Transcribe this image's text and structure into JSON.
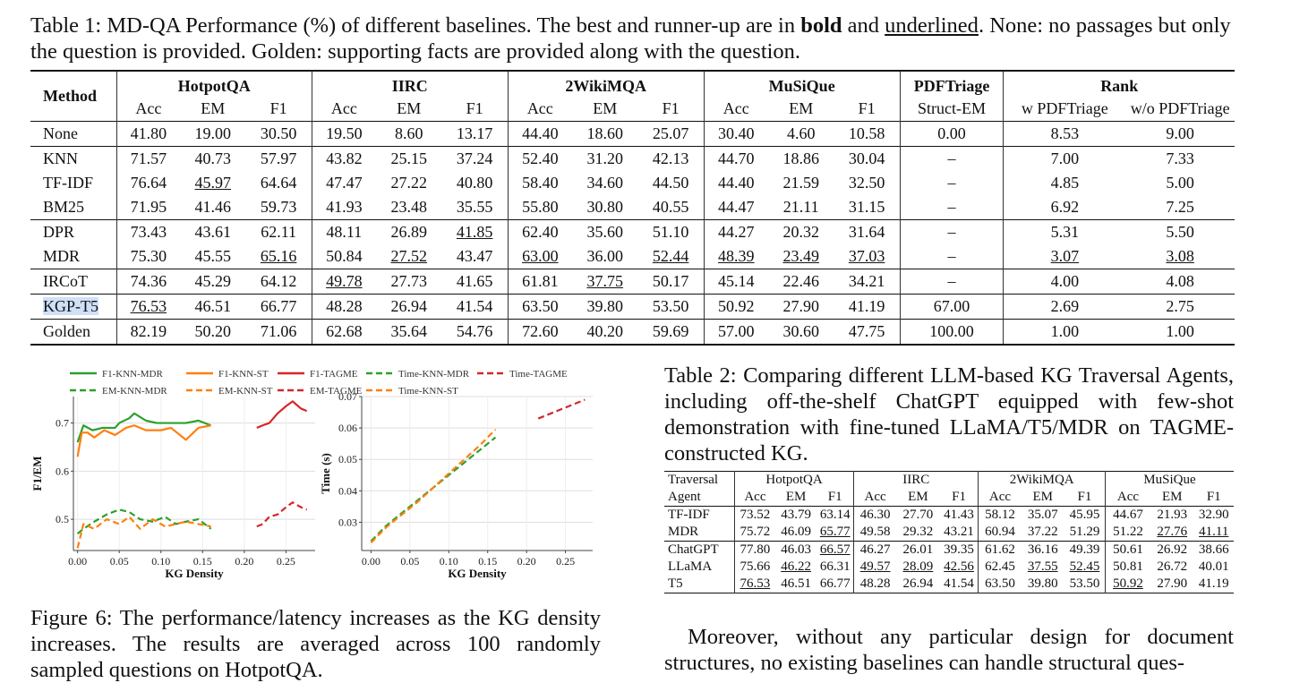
{
  "table1": {
    "caption_prefix": "Table 1: MD-QA Performance (%) of different baselines. The best and runner-up are in ",
    "caption_bold": "bold",
    "caption_and": " and ",
    "caption_underlined": "underlined",
    "caption_suffix": ". None: no passages but only the question is provided. Golden: supporting facts are provided along with the question.",
    "method_header": "Method",
    "groups": [
      "HotpotQA",
      "IIRC",
      "2WikiMQA",
      "MuSiQue",
      "PDFTriage",
      "Rank"
    ],
    "subheaders": [
      "Acc",
      "EM",
      "F1",
      "Acc",
      "EM",
      "F1",
      "Acc",
      "EM",
      "F1",
      "Acc",
      "EM",
      "F1",
      "Struct-EM",
      "w PDFTriage",
      "w/o PDFTriage"
    ],
    "rows": [
      {
        "method": "None",
        "values": [
          "41.80",
          "19.00",
          "30.50",
          "19.50",
          "8.60",
          "13.17",
          "44.40",
          "18.60",
          "25.07",
          "30.40",
          "4.60",
          "10.58",
          "0.00",
          "8.53",
          "9.00"
        ]
      },
      {
        "method": "KNN",
        "values": [
          "71.57",
          "40.73",
          "57.97",
          "43.82",
          "25.15",
          "37.24",
          "52.40",
          "31.20",
          "42.13",
          "44.70",
          "18.86",
          "30.04",
          "–",
          "7.00",
          "7.33"
        ]
      },
      {
        "method": "TF-IDF",
        "values": [
          "76.64",
          "45.97",
          "64.64",
          "47.47",
          "27.22",
          "40.80",
          "58.40",
          "34.60",
          "44.50",
          "44.40",
          "21.59",
          "32.50",
          "–",
          "4.85",
          "5.00"
        ]
      },
      {
        "method": "BM25",
        "values": [
          "71.95",
          "41.46",
          "59.73",
          "41.93",
          "23.48",
          "35.55",
          "55.80",
          "30.80",
          "40.55",
          "44.47",
          "21.11",
          "31.15",
          "–",
          "6.92",
          "7.25"
        ]
      },
      {
        "method": "DPR",
        "values": [
          "73.43",
          "43.61",
          "62.11",
          "48.11",
          "26.89",
          "41.85",
          "62.40",
          "35.60",
          "51.10",
          "44.27",
          "20.32",
          "31.64",
          "–",
          "5.31",
          "5.50"
        ]
      },
      {
        "method": "MDR",
        "values": [
          "75.30",
          "45.55",
          "65.16",
          "50.84",
          "27.52",
          "43.47",
          "63.00",
          "36.00",
          "52.44",
          "48.39",
          "23.49",
          "37.03",
          "–",
          "3.07",
          "3.08"
        ]
      },
      {
        "method": "IRCoT",
        "values": [
          "74.36",
          "45.29",
          "64.12",
          "49.78",
          "27.73",
          "41.65",
          "61.81",
          "37.75",
          "50.17",
          "45.14",
          "22.46",
          "34.21",
          "–",
          "4.00",
          "4.08"
        ]
      },
      {
        "method": "KGP-T5",
        "values": [
          "76.53",
          "46.51",
          "66.77",
          "48.28",
          "26.94",
          "41.54",
          "63.50",
          "39.80",
          "53.50",
          "50.92",
          "27.90",
          "41.19",
          "67.00",
          "2.69",
          "2.75"
        ]
      },
      {
        "method": "Golden",
        "values": [
          "82.19",
          "50.20",
          "71.06",
          "62.68",
          "35.64",
          "54.76",
          "72.60",
          "40.20",
          "59.69",
          "57.00",
          "30.60",
          "47.75",
          "100.00",
          "1.00",
          "1.00"
        ]
      }
    ]
  },
  "figure6": {
    "caption": "Figure 6: The performance/latency increases as the KG density increases. The results are averaged across 100 randomly sampled questions on HotpotQA.",
    "legend": [
      "F1-KNN-MDR",
      "F1-KNN-ST",
      "F1-TAGME",
      "Time-KNN-MDR",
      "Time-TAGME",
      "EM-KNN-MDR",
      "EM-KNN-ST",
      "EM-TAGME",
      "Time-KNN-ST"
    ],
    "colors": {
      "green": "#2ca02c",
      "orange": "#ff7f0e",
      "red": "#d62728"
    }
  },
  "chart_data": [
    {
      "type": "line",
      "title": "",
      "xlabel": "KG Density",
      "ylabel": "F1/EM",
      "xlim": [
        -0.005,
        0.285
      ],
      "ylim": [
        0.435,
        0.755
      ],
      "xticks": [
        "0.00",
        "0.05",
        "0.10",
        "0.15",
        "0.20",
        "0.25"
      ],
      "xtick_values": [
        0,
        0.05,
        0.1,
        0.15,
        0.2,
        0.25
      ],
      "yticks": [
        "0.5",
        "0.6",
        "0.7"
      ],
      "ytick_values": [
        0.5,
        0.6,
        0.7
      ],
      "series": [
        {
          "name": "F1-KNN-MDR",
          "color": "green",
          "dash": false,
          "x": [
            0,
            0.007,
            0.018,
            0.03,
            0.045,
            0.05,
            0.062,
            0.068,
            0.082,
            0.095,
            0.11,
            0.13,
            0.145,
            0.16
          ],
          "y": [
            0.66,
            0.695,
            0.685,
            0.69,
            0.69,
            0.7,
            0.71,
            0.72,
            0.705,
            0.7,
            0.7,
            0.7,
            0.705,
            0.695
          ]
        },
        {
          "name": "F1-KNN-ST",
          "color": "orange",
          "dash": false,
          "x": [
            0,
            0.005,
            0.012,
            0.02,
            0.032,
            0.045,
            0.058,
            0.068,
            0.082,
            0.1,
            0.112,
            0.13,
            0.145,
            0.16
          ],
          "y": [
            0.63,
            0.68,
            0.68,
            0.67,
            0.685,
            0.675,
            0.69,
            0.695,
            0.685,
            0.685,
            0.69,
            0.665,
            0.69,
            0.695
          ]
        },
        {
          "name": "F1-TAGME",
          "color": "red",
          "dash": false,
          "x": [
            0.215,
            0.222,
            0.23,
            0.24,
            0.25,
            0.258,
            0.268,
            0.275
          ],
          "y": [
            0.69,
            0.695,
            0.7,
            0.72,
            0.735,
            0.745,
            0.73,
            0.725
          ]
        },
        {
          "name": "EM-KNN-MDR",
          "color": "green",
          "dash": true,
          "x": [
            0,
            0.007,
            0.02,
            0.035,
            0.05,
            0.062,
            0.075,
            0.09,
            0.105,
            0.118,
            0.13,
            0.145,
            0.16
          ],
          "y": [
            0.47,
            0.48,
            0.495,
            0.51,
            0.52,
            0.515,
            0.5,
            0.495,
            0.505,
            0.49,
            0.495,
            0.5,
            0.48
          ]
        },
        {
          "name": "EM-KNN-ST",
          "color": "orange",
          "dash": true,
          "x": [
            0,
            0.007,
            0.02,
            0.035,
            0.05,
            0.062,
            0.075,
            0.09,
            0.105,
            0.118,
            0.13,
            0.145,
            0.16
          ],
          "y": [
            0.44,
            0.49,
            0.48,
            0.5,
            0.49,
            0.505,
            0.48,
            0.5,
            0.485,
            0.49,
            0.495,
            0.49,
            0.485
          ]
        },
        {
          "name": "EM-TAGME",
          "color": "red",
          "dash": true,
          "x": [
            0.215,
            0.222,
            0.23,
            0.24,
            0.25,
            0.258,
            0.268,
            0.275
          ],
          "y": [
            0.485,
            0.49,
            0.505,
            0.51,
            0.525,
            0.535,
            0.525,
            0.52
          ]
        }
      ]
    },
    {
      "type": "line",
      "title": "",
      "xlabel": "KG Density",
      "ylabel": "Time (s)",
      "xlim": [
        -0.012,
        0.285
      ],
      "ylim": [
        0.021,
        0.07
      ],
      "xticks": [
        "0.00",
        "0.05",
        "0.10",
        "0.15",
        "0.20",
        "0.25"
      ],
      "xtick_values": [
        0,
        0.05,
        0.1,
        0.15,
        0.2,
        0.25
      ],
      "yticks": [
        "0.03",
        "0.04",
        "0.05",
        "0.06",
        "0.07"
      ],
      "ytick_values": [
        0.03,
        0.04,
        0.05,
        0.06,
        0.07
      ],
      "series": [
        {
          "name": "Time-KNN-MDR",
          "color": "green",
          "dash": true,
          "x": [
            0,
            0.02,
            0.04,
            0.06,
            0.08,
            0.1,
            0.12,
            0.14,
            0.16
          ],
          "y": [
            0.024,
            0.029,
            0.033,
            0.037,
            0.041,
            0.045,
            0.049,
            0.053,
            0.057
          ]
        },
        {
          "name": "Time-KNN-ST",
          "color": "orange",
          "dash": true,
          "x": [
            0,
            0.02,
            0.04,
            0.06,
            0.08,
            0.1,
            0.12,
            0.14,
            0.16
          ],
          "y": [
            0.0235,
            0.0285,
            0.0325,
            0.0365,
            0.041,
            0.0455,
            0.05,
            0.0545,
            0.0595
          ]
        },
        {
          "name": "Time-TAGME",
          "color": "red",
          "dash": true,
          "x": [
            0.215,
            0.225,
            0.235,
            0.245,
            0.255,
            0.265,
            0.275
          ],
          "y": [
            0.063,
            0.064,
            0.065,
            0.066,
            0.067,
            0.068,
            0.069
          ]
        }
      ]
    }
  ],
  "table2": {
    "caption": "Table 2: Comparing different LLM-based KG Traversal Agents, including off-the-shelf ChatGPT equipped with few-shot demonstration with fine-tuned LLaMA/T5/MDR on TAGME-constructed KG.",
    "header_line1": "Traversal",
    "header_line2": "Agent",
    "groups": [
      "HotpotQA",
      "IIRC",
      "2WikiMQA",
      "MuSiQue"
    ],
    "subheaders": [
      "Acc",
      "EM",
      "F1",
      "Acc",
      "EM",
      "F1",
      "Acc",
      "EM",
      "F1",
      "Acc",
      "EM",
      "F1"
    ],
    "rows": [
      {
        "agent": "TF-IDF",
        "values": [
          "73.52",
          "43.79",
          "63.14",
          "46.30",
          "27.70",
          "41.43",
          "58.12",
          "35.07",
          "45.95",
          "44.67",
          "21.93",
          "32.90"
        ]
      },
      {
        "agent": "MDR",
        "values": [
          "75.72",
          "46.09",
          "65.77",
          "49.58",
          "29.32",
          "43.21",
          "60.94",
          "37.22",
          "51.29",
          "51.22",
          "27.76",
          "41.11"
        ]
      },
      {
        "agent": "ChatGPT",
        "values": [
          "77.80",
          "46.03",
          "66.57",
          "46.27",
          "26.01",
          "39.35",
          "61.62",
          "36.16",
          "49.39",
          "50.61",
          "26.92",
          "38.66"
        ]
      },
      {
        "agent": "LLaMA",
        "values": [
          "75.66",
          "46.22",
          "66.31",
          "49.57",
          "28.09",
          "42.56",
          "62.45",
          "37.55",
          "52.45",
          "50.81",
          "26.72",
          "40.01"
        ]
      },
      {
        "agent": "T5",
        "values": [
          "76.53",
          "46.51",
          "66.77",
          "48.28",
          "26.94",
          "41.54",
          "63.50",
          "39.80",
          "53.50",
          "50.92",
          "27.90",
          "41.19"
        ]
      }
    ]
  },
  "paragraph": "Moreover, without any particular design for document structures, no existing baselines can handle structural ques-"
}
